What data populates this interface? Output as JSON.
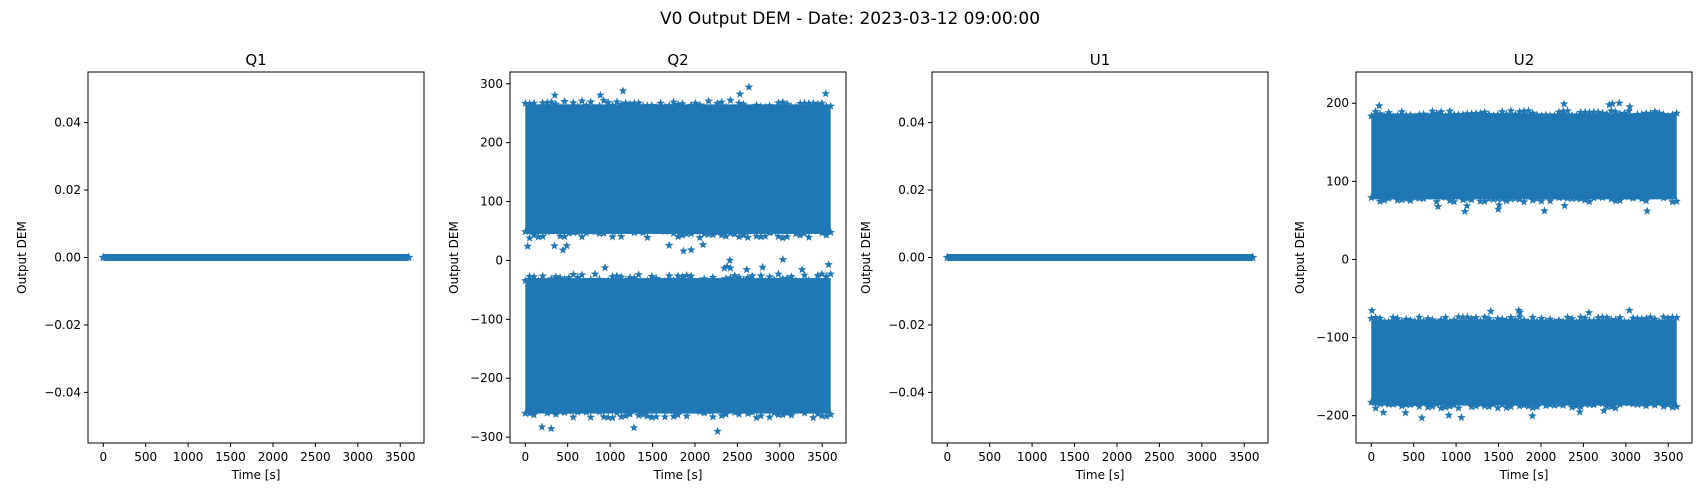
{
  "figure": {
    "title": "V0 Output DEM - Date: 2023-03-12 09:00:00"
  },
  "colors": {
    "series": "#1f77b4",
    "axes": "#000000",
    "background": "#ffffff"
  },
  "chart_data": [
    {
      "type": "scatter",
      "title": "Q1",
      "xlabel": "Time [s]",
      "ylabel": "Output DEM",
      "marker": "star",
      "grid": false,
      "xlim": [
        -180,
        3780
      ],
      "ylim": [
        -0.055,
        0.055
      ],
      "xticks": [
        0,
        500,
        1000,
        1500,
        2000,
        2500,
        3000,
        3500
      ],
      "xtick_labels": [
        "0",
        "500",
        "1000",
        "1500",
        "2000",
        "2500",
        "3000",
        "3500"
      ],
      "yticks": [
        -0.04,
        -0.02,
        0.0,
        0.02,
        0.04
      ],
      "ytick_labels": [
        "−0.04",
        "−0.02",
        "0.00",
        "0.02",
        "0.04"
      ],
      "series": [
        {
          "x_range": [
            0,
            3600
          ],
          "bands": [
            {
              "center": 0,
              "half_width": 0
            }
          ]
        }
      ]
    },
    {
      "type": "scatter",
      "title": "Q2",
      "xlabel": "Time [s]",
      "ylabel": "Output DEM",
      "marker": "star",
      "grid": false,
      "xlim": [
        -180,
        3780
      ],
      "ylim": [
        -310,
        320
      ],
      "xticks": [
        0,
        500,
        1000,
        1500,
        2000,
        2500,
        3000,
        3500
      ],
      "xtick_labels": [
        "0",
        "500",
        "1000",
        "1500",
        "2000",
        "2500",
        "3000",
        "3500"
      ],
      "yticks": [
        -300,
        -200,
        -100,
        0,
        100,
        200,
        300
      ],
      "ytick_labels": [
        "−300",
        "−200",
        "−100",
        "0",
        "100",
        "200",
        "300"
      ],
      "series": [
        {
          "x_range": [
            0,
            3600
          ],
          "bands": [
            {
              "center": 155,
              "half_width": 110
            },
            {
              "center": -145,
              "half_width": 115
            }
          ]
        }
      ]
    },
    {
      "type": "scatter",
      "title": "U1",
      "xlabel": "Time [s]",
      "ylabel": "Output DEM",
      "marker": "star",
      "grid": false,
      "xlim": [
        -180,
        3780
      ],
      "ylim": [
        -0.055,
        0.055
      ],
      "xticks": [
        0,
        500,
        1000,
        1500,
        2000,
        2500,
        3000,
        3500
      ],
      "xtick_labels": [
        "0",
        "500",
        "1000",
        "1500",
        "2000",
        "2500",
        "3000",
        "3500"
      ],
      "yticks": [
        -0.04,
        -0.02,
        0.0,
        0.02,
        0.04
      ],
      "ytick_labels": [
        "−0.04",
        "−0.02",
        "0.00",
        "0.02",
        "0.04"
      ],
      "series": [
        {
          "x_range": [
            0,
            3600
          ],
          "bands": [
            {
              "center": 0,
              "half_width": 0
            }
          ]
        }
      ]
    },
    {
      "type": "scatter",
      "title": "U2",
      "xlabel": "Time [s]",
      "ylabel": "Output DEM",
      "marker": "star",
      "grid": false,
      "xlim": [
        -180,
        3780
      ],
      "ylim": [
        -235,
        240
      ],
      "xticks": [
        0,
        500,
        1000,
        1500,
        2000,
        2500,
        3000,
        3500
      ],
      "xtick_labels": [
        "0",
        "500",
        "1000",
        "1500",
        "2000",
        "2500",
        "3000",
        "3500"
      ],
      "yticks": [
        -200,
        -100,
        0,
        100,
        200
      ],
      "ytick_labels": [
        "−200",
        "−100",
        "0",
        "100",
        "200"
      ],
      "series": [
        {
          "x_range": [
            0,
            3600
          ],
          "bands": [
            {
              "center": 132,
              "half_width": 55
            },
            {
              "center": -132,
              "half_width": 55
            }
          ]
        }
      ]
    }
  ]
}
